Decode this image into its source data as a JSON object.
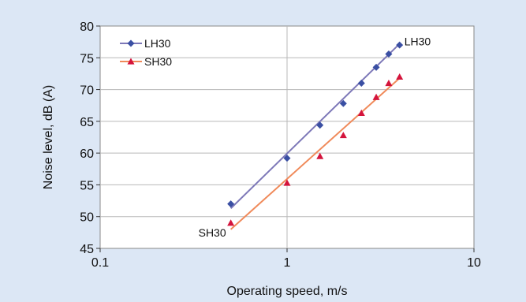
{
  "chart_data": {
    "type": "scatter",
    "xscale": "log",
    "xlim": [
      0.1,
      10
    ],
    "ylim": [
      45,
      80
    ],
    "xticks": [
      "0.1",
      "1",
      "10"
    ],
    "yticks": [
      "45",
      "50",
      "55",
      "60",
      "65",
      "70",
      "75",
      "80"
    ],
    "xlabel": "Operating speed, m/s",
    "ylabel": "Noise level, dB (A)",
    "grid": "major gridlines",
    "legend_position": "top-left",
    "series": [
      {
        "name": "LH30",
        "color": "#3a4fa3",
        "line_color": "#7d78b8",
        "marker": "diamond",
        "x": [
          0.5,
          1.0,
          1.5,
          2.0,
          2.5,
          3.0,
          3.5,
          4.0
        ],
        "y": [
          52.0,
          59.2,
          64.4,
          67.8,
          71.0,
          73.5,
          75.6,
          77.0
        ],
        "fit": {
          "x": [
            0.5,
            4.0
          ],
          "y": [
            51.3,
            77.2
          ]
        },
        "end_label": "LH30"
      },
      {
        "name": "SH30",
        "color": "#d4143c",
        "line_color": "#f08a5a",
        "marker": "triangle",
        "x": [
          0.5,
          1.0,
          1.5,
          2.0,
          2.5,
          3.0,
          3.5,
          4.0
        ],
        "y": [
          49.0,
          55.3,
          59.5,
          62.8,
          66.3,
          68.8,
          71.0,
          72.0
        ],
        "fit": {
          "x": [
            0.5,
            4.0
          ],
          "y": [
            48.0,
            71.8
          ]
        },
        "end_label": "SH30"
      }
    ]
  }
}
